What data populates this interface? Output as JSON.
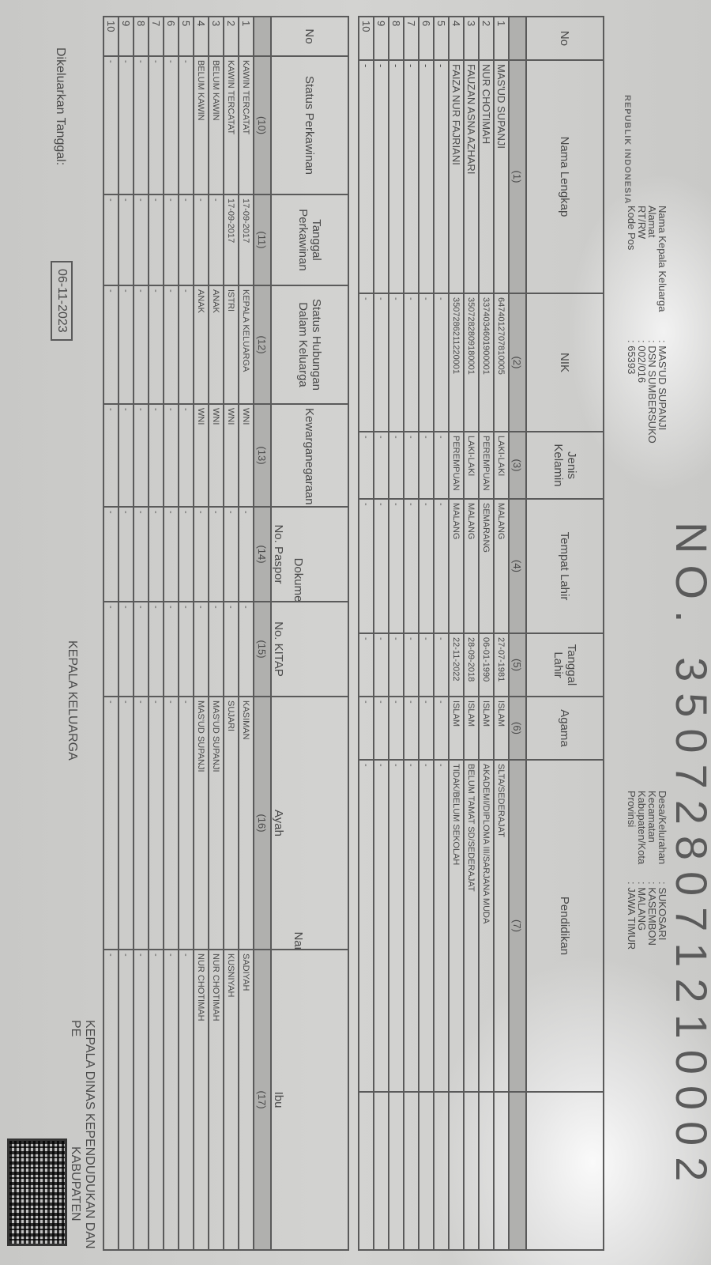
{
  "header": {
    "title": "NO. 350728071210002",
    "country": "REPUBLIK INDONESIA",
    "left_info": [
      {
        "label": "Nama Kepala Keluarga",
        "value": ": MAS'UD SUPANJI"
      },
      {
        "label": "Alamat",
        "value": ": DSN SUMBERSUKO"
      },
      {
        "label": "RT/RW",
        "value": ": 002/016"
      },
      {
        "label": "Kode Pos",
        "value": ": 65393"
      }
    ],
    "right_info": [
      {
        "label": "Desa/Kelurahan",
        "value": ": SUKOSARI"
      },
      {
        "label": "Kecamatan",
        "value": ": KASEMBON"
      },
      {
        "label": "Kabupaten/Kota",
        "value": ": MALANG"
      },
      {
        "label": "Provinsi",
        "value": ": JAWA TIMUR"
      }
    ]
  },
  "table1": {
    "headers": [
      "No",
      "Nama Lengkap",
      "NIK",
      "Jenis Kelamin",
      "Tempat Lahir",
      "Tanggal Lahir",
      "Agama",
      "Pendidikan",
      ""
    ],
    "numbers": [
      "",
      "(1)",
      "(2)",
      "(3)",
      "(4)",
      "(5)",
      "(6)",
      "(7)",
      ""
    ],
    "rows": [
      [
        "1",
        "MAS'UD SUPANJI",
        "6474012707810005",
        "LAKI-LAKI",
        "MALANG",
        "27-07-1981",
        "ISLAM",
        "SLTA/SEDERAJAT",
        ""
      ],
      [
        "2",
        "NUR CHOTIMAH",
        "3374034601900001",
        "PEREMPUAN",
        "SEMARANG",
        "06-01-1990",
        "ISLAM",
        "AKADEMI/DIPLOMA III/SARJANA MUDA",
        ""
      ],
      [
        "3",
        "FAUZAN ASNA AZHARI",
        "3507282809180001",
        "LAKI-LAKI",
        "MALANG",
        "28-09-2018",
        "ISLAM",
        "BELUM TAMAT SD/SEDERAJAT",
        ""
      ],
      [
        "4",
        "FAIZA NUR FAJRIANI",
        "3507286211220001",
        "PEREMPUAN",
        "MALANG",
        "22-11-2022",
        "ISLAM",
        "TIDAK/BELUM SEKOLAH",
        ""
      ],
      [
        "5",
        "-",
        "-",
        "-",
        "-",
        "-",
        "-",
        "-",
        ""
      ],
      [
        "6",
        "-",
        "-",
        "-",
        "-",
        "-",
        "-",
        "-",
        ""
      ],
      [
        "7",
        "-",
        "-",
        "-",
        "-",
        "-",
        "-",
        "-",
        ""
      ],
      [
        "8",
        "-",
        "-",
        "-",
        "-",
        "-",
        "-",
        "-",
        ""
      ],
      [
        "9",
        "-",
        "-",
        "-",
        "-",
        "-",
        "-",
        "-",
        ""
      ],
      [
        "10",
        "-",
        "-",
        "-",
        "-",
        "-",
        "-",
        "-",
        ""
      ]
    ]
  },
  "table2": {
    "group_headers": {
      "dokumen": "Dokumen Imigrasi",
      "orang_tua": "Nama Orang Tua"
    },
    "headers": [
      "No",
      "Status Perkawinan",
      "Tanggal Perkawinan",
      "Status Hubungan Dalam Keluarga",
      "Kewarganegaraan",
      "No. Paspor",
      "No. KITAP",
      "Ayah",
      "Ibu"
    ],
    "numbers": [
      "",
      "(10)",
      "(11)",
      "(12)",
      "(13)",
      "(14)",
      "(15)",
      "(16)",
      "(17)"
    ],
    "rows": [
      [
        "1",
        "KAWIN TERCATAT",
        "17-09-2017",
        "KEPALA KELUARGA",
        "WNI",
        "-",
        "-",
        "KASIMAN",
        "SADIYAH"
      ],
      [
        "2",
        "KAWIN TERCATAT",
        "17-09-2017",
        "ISTRI",
        "WNI",
        "-",
        "-",
        "SUJARI",
        "KUSNIYAH"
      ],
      [
        "3",
        "BELUM KAWIN",
        "-",
        "ANAK",
        "WNI",
        "-",
        "-",
        "MAS'UD SUPANJI",
        "NUR CHOTIMAH"
      ],
      [
        "4",
        "BELUM KAWIN",
        "-",
        "ANAK",
        "WNI",
        "-",
        "-",
        "MAS'UD SUPANJI",
        "NUR CHOTIMAH"
      ],
      [
        "5",
        "-",
        "-",
        "-",
        "-",
        "-",
        "-",
        "-",
        "-"
      ],
      [
        "6",
        "-",
        "-",
        "-",
        "-",
        "-",
        "-",
        "-",
        "-"
      ],
      [
        "7",
        "-",
        "-",
        "-",
        "-",
        "-",
        "-",
        "-",
        "-"
      ],
      [
        "8",
        "-",
        "-",
        "-",
        "-",
        "-",
        "-",
        "-",
        "-"
      ],
      [
        "9",
        "-",
        "-",
        "-",
        "-",
        "-",
        "-",
        "-",
        "-"
      ],
      [
        "10",
        "-",
        "-",
        "-",
        "-",
        "-",
        "-",
        "-",
        "-"
      ]
    ]
  },
  "footer": {
    "issued_label": "Dikeluarkan Tanggal:",
    "issued_date": "06-11-2023",
    "head_signature": "KEPALA KELUARGA",
    "official_line1": "KEPALA DINAS KEPENDUDUKAN DAN PE",
    "official_line2": "KABUPATEN MALANG"
  }
}
